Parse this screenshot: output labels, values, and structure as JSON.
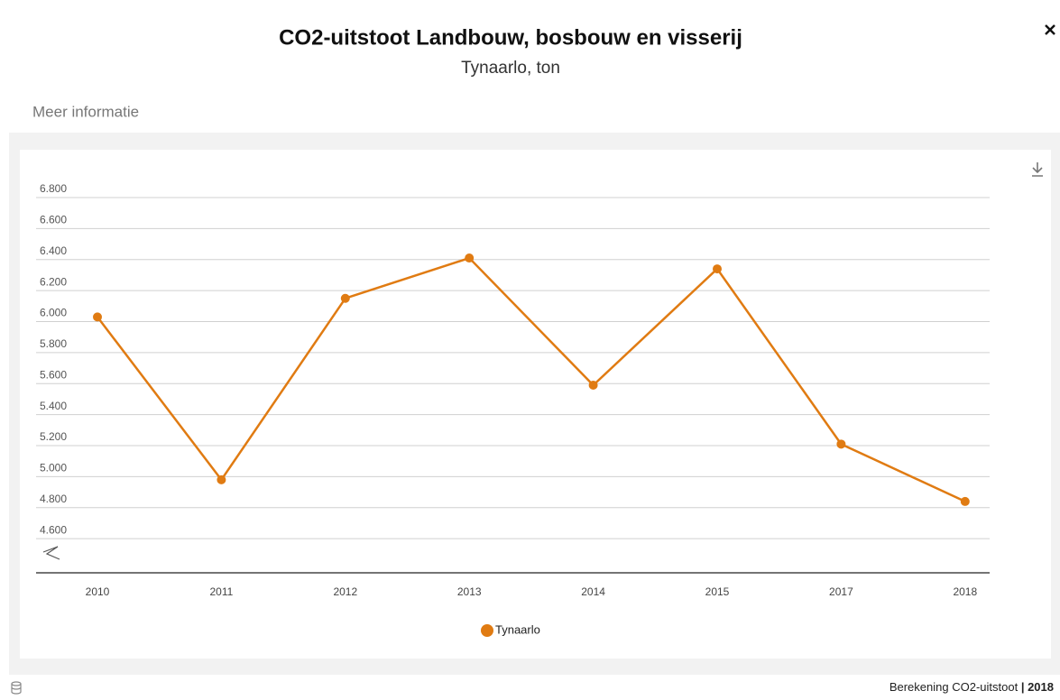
{
  "header": {
    "title": "CO2-uitstoot Landbouw, bosbouw en visserij",
    "subtitle": "Tynaarlo, ton",
    "link": "Meer informatie"
  },
  "chart_data": {
    "type": "line",
    "categories": [
      "2010",
      "2011",
      "2012",
      "2013",
      "2014",
      "2015",
      "2017",
      "2018"
    ],
    "series": [
      {
        "name": "Tynaarlo",
        "color": "#e07b12",
        "values": [
          6030,
          4980,
          6150,
          6410,
          5590,
          6340,
          5210,
          4840
        ]
      }
    ],
    "ylim": [
      4380,
      6800
    ],
    "yticks": [
      {
        "value": 4600,
        "label": "4.600"
      },
      {
        "value": 4800,
        "label": "4.800"
      },
      {
        "value": 5000,
        "label": "5.000"
      },
      {
        "value": 5200,
        "label": "5.200"
      },
      {
        "value": 5400,
        "label": "5.400"
      },
      {
        "value": 5600,
        "label": "5.600"
      },
      {
        "value": 5800,
        "label": "5.800"
      },
      {
        "value": 6000,
        "label": "6.000"
      },
      {
        "value": 6200,
        "label": "6.200"
      },
      {
        "value": 6400,
        "label": "6.400"
      },
      {
        "value": 6600,
        "label": "6.600"
      },
      {
        "value": 6800,
        "label": "6.800"
      }
    ],
    "grid": true,
    "legend": "bottom"
  },
  "footer": {
    "source": "Berekening CO2-uitstoot",
    "separator": "|",
    "year": "2018"
  }
}
